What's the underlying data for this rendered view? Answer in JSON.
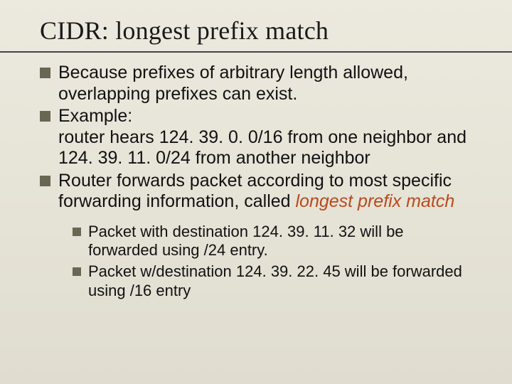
{
  "slide": {
    "title": "CIDR: longest prefix match",
    "title_font": "Times New Roman",
    "title_fontsize": 36,
    "title_color": "#1a1a1a",
    "underline_color": "#444444",
    "background_gradient": [
      "#ece9de",
      "#e0ddd0"
    ],
    "body_font": "Arial",
    "body_fontsize": 25,
    "body_color": "#111111",
    "bullet_color": "#6a6654",
    "accent_color": "#b84a1e",
    "bullets": [
      {
        "text_a": "Because prefixes of arbitrary length allowed, overlapping prefixes can exist."
      },
      {
        "text_a": "Example:",
        "text_b": "router hears 124. 39. 0. 0/16 from one neighbor and 124. 39. 11. 0/24 from another neighbor"
      },
      {
        "text_a": "Router forwards packet according to most specific forwarding information, called ",
        "accent_italic": "longest prefix match"
      }
    ],
    "sub_bullets": [
      {
        "text": "Packet with destination 124. 39. 11. 32 will be forwarded using /24 entry."
      },
      {
        "text": "Packet w/destination 124. 39. 22. 45 will be forwarded using /16 entry"
      }
    ],
    "sub_fontsize": 22
  }
}
